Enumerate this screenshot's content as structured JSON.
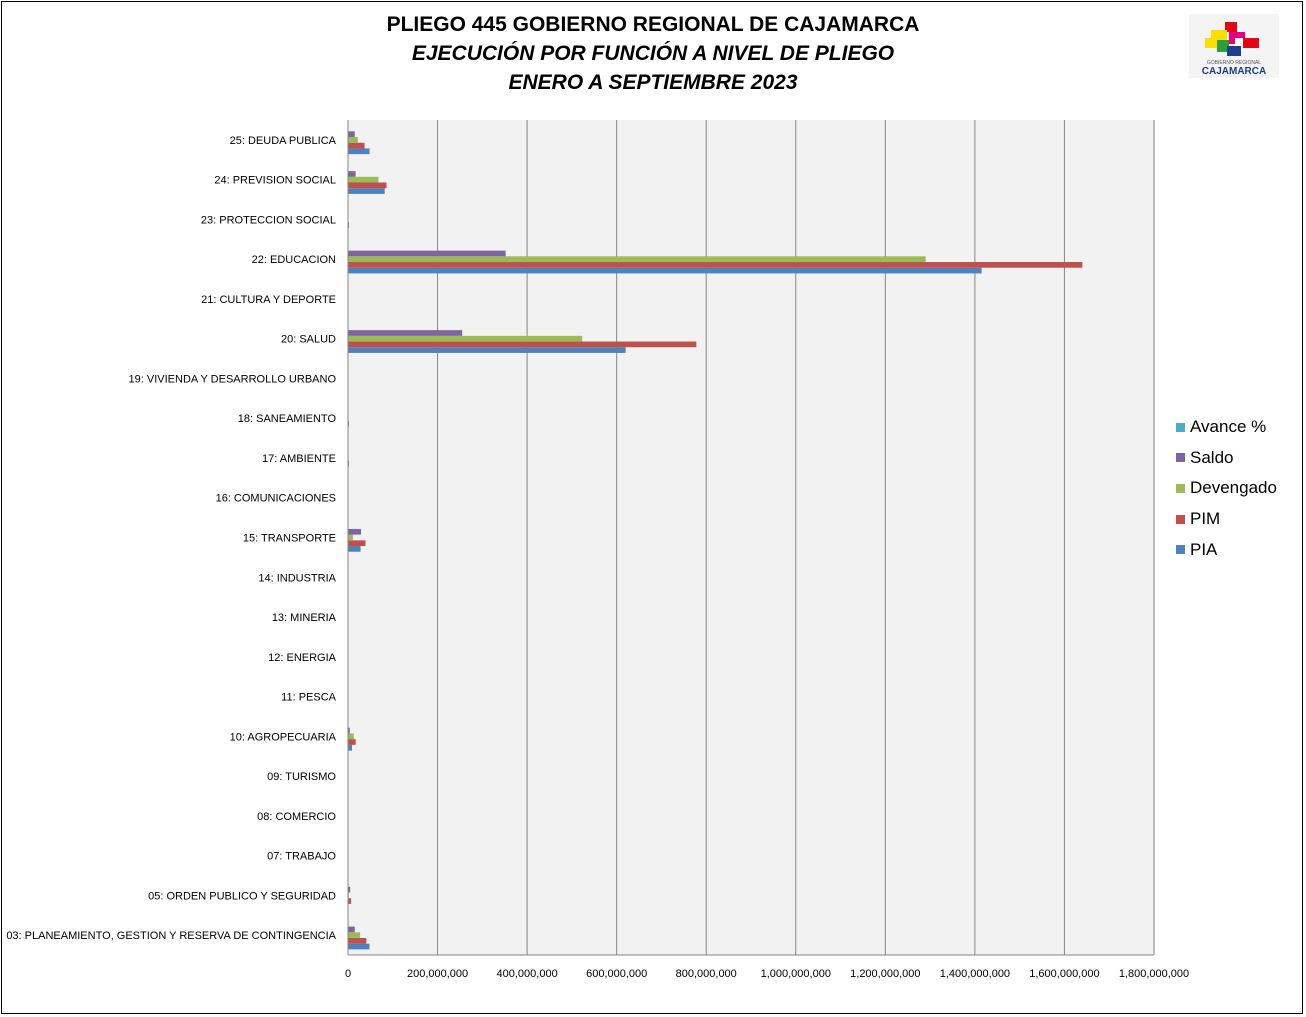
{
  "title": {
    "line1": "PLIEGO 445 GOBIERNO REGIONAL DE CAJAMARCA",
    "line2": "EJECUCIÓN POR FUNCIÓN A NIVEL DE PLIEGO",
    "line3": "ENERO A SEPTIEMBRE 2023"
  },
  "logo": {
    "caption_small": "GOBIERNO REGIONAL",
    "caption_big": "CAJAMARCA",
    "colors": [
      "#e30613",
      "#ffdd00",
      "#2e9e3b",
      "#1d3f8f",
      "#e6007e"
    ]
  },
  "chart_data": {
    "type": "bar",
    "orientation": "horizontal",
    "categories": [
      "25: DEUDA PUBLICA",
      "24: PREVISION SOCIAL",
      "23: PROTECCION SOCIAL",
      "22: EDUCACION",
      "21: CULTURA Y DEPORTE",
      "20: SALUD",
      "19: VIVIENDA Y DESARROLLO URBANO",
      "18: SANEAMIENTO",
      "17: AMBIENTE",
      "16: COMUNICACIONES",
      "15: TRANSPORTE",
      "14: INDUSTRIA",
      "13: MINERIA",
      "12: ENERGIA",
      "11: PESCA",
      "10: AGROPECUARIA",
      "09: TURISMO",
      "08: COMERCIO",
      "07: TRABAJO",
      "05: ORDEN PUBLICO Y SEGURIDAD",
      "03: PLANEAMIENTO, GESTION Y RESERVA DE CONTINGENCIA"
    ],
    "series": [
      {
        "name": "PIA",
        "color": "#4f81bd",
        "values": [
          48000000,
          82000000,
          0,
          1415000000,
          0,
          620000000,
          0,
          0,
          0,
          0,
          28000000,
          0,
          0,
          0,
          0,
          9000000,
          0,
          0,
          0,
          0,
          48000000
        ]
      },
      {
        "name": "PIM",
        "color": "#c0504d",
        "values": [
          37000000,
          86000000,
          2000000,
          1640000000,
          0,
          778000000,
          0,
          2000000,
          2000000,
          0,
          39000000,
          0,
          0,
          0,
          0,
          17000000,
          0,
          0,
          0,
          7000000,
          41000000
        ]
      },
      {
        "name": "Devengado",
        "color": "#9bbb59",
        "values": [
          22000000,
          68000000,
          0,
          1290000000,
          0,
          523000000,
          0,
          0,
          0,
          0,
          11000000,
          0,
          0,
          0,
          0,
          13000000,
          0,
          0,
          0,
          1000000,
          27000000
        ]
      },
      {
        "name": "Saldo",
        "color": "#8064a2",
        "values": [
          15000000,
          17000000,
          0,
          352000000,
          0,
          255000000,
          0,
          0,
          0,
          0,
          29000000,
          0,
          0,
          0,
          0,
          4000000,
          0,
          0,
          0,
          5000000,
          15000000
        ]
      },
      {
        "name": "Avance %",
        "color": "#4bacc6",
        "values": [
          0,
          0,
          0,
          0,
          0,
          0,
          0,
          0,
          0,
          0,
          0,
          0,
          0,
          0,
          0,
          0,
          0,
          0,
          0,
          0,
          0
        ]
      }
    ],
    "xlim": [
      0,
      1800000000
    ],
    "xticks": [
      0,
      200000000,
      400000000,
      600000000,
      800000000,
      1000000000,
      1200000000,
      1400000000,
      1600000000,
      1800000000
    ],
    "xtick_labels": [
      "0",
      "200,000,000",
      "400,000,000",
      "600,000,000",
      "800,000,000",
      "1,000,000,000",
      "1,200,000,000",
      "1,400,000,000",
      "1,600,000,000",
      "1,800,000,000"
    ],
    "grid": "vertical",
    "plot_background": "#f2f2f2",
    "legend_position": "right",
    "legend_order": [
      "Avance %",
      "Saldo",
      "Devengado",
      "PIM",
      "PIA"
    ]
  }
}
